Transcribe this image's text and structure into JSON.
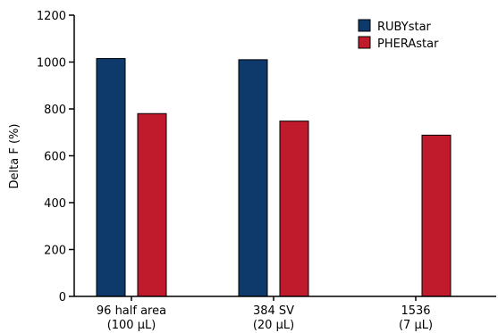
{
  "chart_data": {
    "type": "bar",
    "title": "",
    "xlabel": "",
    "ylabel": "Delta F (%)",
    "ylim": [
      0,
      1200
    ],
    "yticks": [
      0,
      200,
      400,
      600,
      800,
      1000,
      1200
    ],
    "grid": false,
    "legend_position": "top-right",
    "categories": [
      {
        "line1": "96 half area",
        "line2": "(100 µL)"
      },
      {
        "line1": "384 SV",
        "line2": "(20 µL)"
      },
      {
        "line1": "1536",
        "line2": "(7 µL)"
      }
    ],
    "series": [
      {
        "name": "RUBYstar",
        "color": "#0d3a6b",
        "values": [
          1015,
          1010,
          null
        ]
      },
      {
        "name": "PHERAstar",
        "color": "#c01b2c",
        "values": [
          780,
          748,
          688
        ]
      }
    ]
  }
}
